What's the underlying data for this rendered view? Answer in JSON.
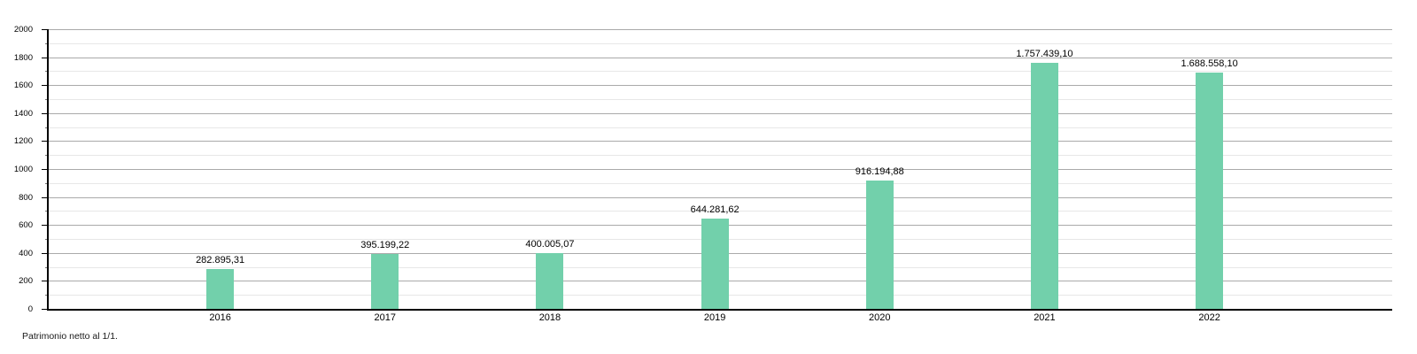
{
  "chart_data": {
    "type": "bar",
    "title": "",
    "caption": "Patrimonio netto al 1/1.",
    "categories": [
      "2016",
      "2017",
      "2018",
      "2019",
      "2020",
      "2021",
      "2022"
    ],
    "values": [
      282895.31,
      395199.22,
      400005.07,
      644281.62,
      916194.88,
      1757439.1,
      1688558.1
    ],
    "value_labels": [
      "282.895,31",
      "395.199,22",
      "400.005,07",
      "644.281,62",
      "916.194,88",
      "1.757.439,10",
      "1.688.558,10"
    ],
    "series_name": "Patrimonio netto al 1/1.",
    "xlabel": "",
    "ylabel": "",
    "y_axis": {
      "min": 0,
      "max": 2000,
      "major_step": 200,
      "minor_step": 100,
      "unit_divisor": 1000,
      "tick_labels": [
        "0",
        "200",
        "400",
        "600",
        "800",
        "1000",
        "1200",
        "1400",
        "1600",
        "1800",
        "2000"
      ]
    },
    "grid": "on",
    "legend": "none",
    "colors": {
      "bar": "#72D0AB",
      "major_grid": "#aaaaaa",
      "minor_grid": "#e7e7e7",
      "axis": "#000000",
      "text": "#000000",
      "background": "#ffffff"
    }
  }
}
